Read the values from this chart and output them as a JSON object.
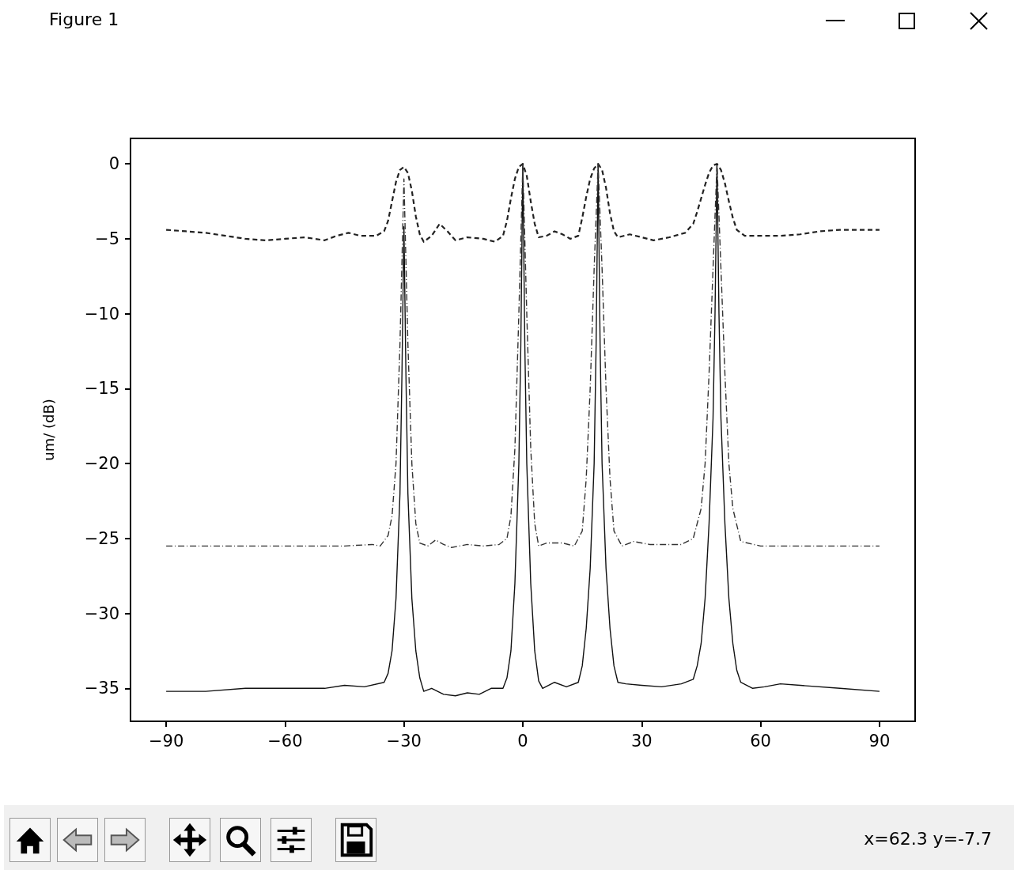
{
  "chart_data": {
    "type": "line",
    "ylabel": "um/ (dB)",
    "annotations": [
      "Figure 1",
      "x=62.3 y=-7.7"
    ],
    "xlim": [
      -99,
      99
    ],
    "xticks": [
      -90,
      -60,
      -30,
      0,
      30,
      60,
      90
    ],
    "ylim": [
      -37.2,
      1.7
    ],
    "yticks": [
      -35,
      -30,
      -25,
      -20,
      -15,
      -10,
      -5,
      0
    ],
    "grid": false,
    "marker": "none",
    "series": [
      {
        "color": "#222222",
        "line_style": "dashed",
        "x": [
          -90,
          -85,
          -80,
          -75,
          -70,
          -65,
          -60,
          -55,
          -50,
          -47,
          -44,
          -41,
          -37,
          -35,
          -34,
          -33,
          -32,
          -31,
          -30,
          -29,
          -28,
          -27,
          -26,
          -25,
          -23,
          -21,
          -19,
          -17,
          -14,
          -10,
          -7,
          -5,
          -4,
          -3,
          -2,
          -1,
          0,
          1,
          2,
          3,
          4,
          6,
          8,
          10,
          12,
          14,
          15,
          16,
          17,
          18,
          19,
          20,
          21,
          22,
          23,
          24,
          27,
          30,
          33,
          37,
          41,
          43,
          44,
          45,
          46,
          47,
          48,
          49,
          50,
          51,
          52,
          53,
          54,
          56,
          60,
          65,
          70,
          75,
          80,
          85,
          90
        ],
        "values": [
          -4.4,
          -4.5,
          -4.6,
          -4.8,
          -5.0,
          -5.1,
          -5.0,
          -4.9,
          -5.1,
          -4.8,
          -4.6,
          -4.8,
          -4.8,
          -4.5,
          -3.8,
          -2.5,
          -1.2,
          -0.4,
          -0.2,
          -0.6,
          -1.8,
          -3.5,
          -4.7,
          -5.2,
          -4.8,
          -4.0,
          -4.5,
          -5.1,
          -4.9,
          -5.0,
          -5.2,
          -4.8,
          -3.8,
          -2.3,
          -1.0,
          -0.2,
          0,
          -0.8,
          -2.5,
          -4.0,
          -4.9,
          -4.8,
          -4.5,
          -4.7,
          -5.0,
          -4.8,
          -3.6,
          -2.2,
          -1.0,
          -0.3,
          0,
          -0.4,
          -1.6,
          -3.3,
          -4.5,
          -4.9,
          -4.7,
          -4.9,
          -5.1,
          -4.9,
          -4.6,
          -4.0,
          -3.2,
          -2.3,
          -1.4,
          -0.6,
          -0.1,
          0,
          -0.4,
          -1.3,
          -2.5,
          -3.6,
          -4.4,
          -4.8,
          -4.8,
          -4.8,
          -4.7,
          -4.5,
          -4.4,
          -4.4,
          -4.4
        ]
      },
      {
        "color": "#111111",
        "line_style": "solid",
        "x": [
          -90,
          -80,
          -70,
          -60,
          -50,
          -45,
          -40,
          -35,
          -34,
          -33,
          -32,
          -31,
          -30.5,
          -30,
          -29.5,
          -29,
          -28,
          -27,
          -26,
          -25,
          -23,
          -20,
          -17,
          -14,
          -11,
          -8,
          -5,
          -4,
          -3,
          -2,
          -1,
          -0.5,
          0,
          0.5,
          1,
          2,
          3,
          4,
          5,
          8,
          11,
          14,
          15,
          16,
          17,
          18,
          18.5,
          19,
          19.5,
          20,
          21,
          22,
          23,
          24,
          26,
          30,
          35,
          40,
          43,
          44,
          45,
          46,
          47,
          48,
          48.5,
          49,
          49.5,
          50,
          51,
          52,
          53,
          54,
          55,
          58,
          61,
          65,
          70,
          80,
          90
        ],
        "values": [
          -35.2,
          -35.2,
          -35.0,
          -35.0,
          -35.0,
          -34.8,
          -34.9,
          -34.6,
          -34.0,
          -32.5,
          -29,
          -22,
          -14,
          -4.2,
          -14,
          -22,
          -29,
          -32.5,
          -34.3,
          -35.2,
          -35.0,
          -35.4,
          -35.5,
          -35.3,
          -35.4,
          -35.0,
          -35.0,
          -34.3,
          -32.5,
          -28,
          -20,
          -12,
          0,
          -12,
          -20,
          -28,
          -32.5,
          -34.5,
          -35.0,
          -34.6,
          -34.9,
          -34.6,
          -33.5,
          -31,
          -27,
          -20,
          -12,
          0,
          -12,
          -20,
          -27,
          -31,
          -33.5,
          -34.6,
          -34.7,
          -34.8,
          -34.9,
          -34.7,
          -34.4,
          -33.5,
          -32,
          -29,
          -24,
          -17,
          -10,
          0,
          -10,
          -17,
          -24,
          -29,
          -32,
          -33.8,
          -34.6,
          -35.0,
          -34.9,
          -34.7,
          -34.8,
          -35.0,
          -35.2
        ]
      },
      {
        "color": "#333333",
        "line_style": "dashdot",
        "x": [
          -90,
          -80,
          -60,
          -45,
          -38,
          -36,
          -34,
          -33,
          -32,
          -31,
          -30,
          -29,
          -28,
          -27,
          -26,
          -24,
          -22,
          -20,
          -18,
          -14,
          -10,
          -6,
          -4,
          -3,
          -2,
          -1,
          0,
          1,
          2,
          3,
          4,
          6,
          10,
          13,
          15,
          16,
          17,
          18,
          19,
          20,
          21,
          22,
          23,
          25,
          28,
          32,
          36,
          40,
          43,
          45,
          46,
          47,
          48,
          49,
          50,
          51,
          52,
          53,
          55,
          60,
          75,
          90
        ],
        "values": [
          -25.5,
          -25.5,
          -25.5,
          -25.5,
          -25.4,
          -25.5,
          -24.8,
          -23.5,
          -20,
          -12,
          -1,
          -12,
          -20,
          -24,
          -25.3,
          -25.5,
          -25.1,
          -25.4,
          -25.6,
          -25.4,
          -25.5,
          -25.4,
          -25,
          -23.5,
          -19,
          -10,
          0,
          -10,
          -19,
          -24,
          -25.5,
          -25.3,
          -25.3,
          -25.5,
          -24.5,
          -21,
          -15,
          -7,
          0,
          -7,
          -15,
          -21,
          -24.5,
          -25.5,
          -25.2,
          -25.4,
          -25.4,
          -25.4,
          -25,
          -23,
          -20,
          -14,
          -7,
          0,
          -7,
          -14,
          -20,
          -23,
          -25.2,
          -25.5,
          -25.5,
          -25.5
        ]
      }
    ]
  }
}
